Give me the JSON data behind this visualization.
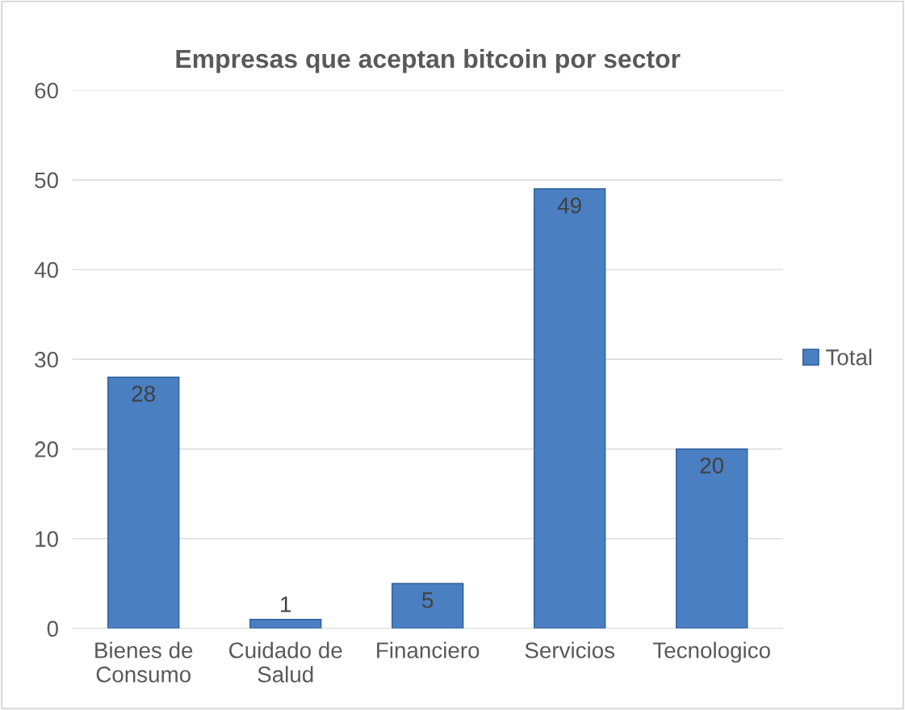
{
  "chart_data": {
    "type": "bar",
    "title": "Empresas que aceptan bitcoin por sector",
    "categories": [
      "Bienes de\nConsumo",
      "Cuidado de\nSalud",
      "Financiero",
      "Servicios",
      "Tecnologico"
    ],
    "series": [
      {
        "name": "Total",
        "color": "#4a7fc1",
        "values": [
          28,
          1,
          5,
          49,
          20
        ]
      }
    ],
    "ylim": [
      0,
      60
    ],
    "yticks": [
      0,
      10,
      20,
      30,
      40,
      50,
      60
    ],
    "grid": "y",
    "legend": "right",
    "data_labels": true
  }
}
